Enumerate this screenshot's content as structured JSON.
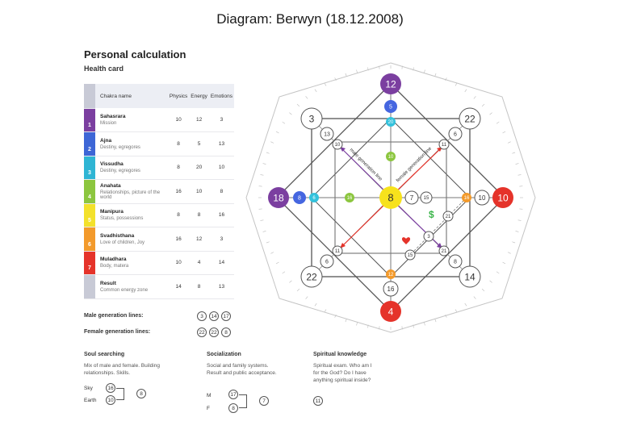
{
  "title": "Diagram: Berwyn (18.12.2008)",
  "heading": "Personal calculation",
  "subheading": "Health card",
  "table": {
    "headers": [
      "Chakra name",
      "Physics",
      "Energy",
      "Emotions"
    ],
    "rows": [
      {
        "num": "1",
        "name": "Sahasrara",
        "desc": "Mission",
        "physics": "10",
        "energy": "12",
        "emotions": "3",
        "color": "#7b3fa0"
      },
      {
        "num": "2",
        "name": "Ajna",
        "desc": "Destiny, egregores",
        "physics": "8",
        "energy": "5",
        "emotions": "13",
        "color": "#3d66d6"
      },
      {
        "num": "3",
        "name": "Vissudha",
        "desc": "Destiny, egregores",
        "physics": "8",
        "energy": "20",
        "emotions": "10",
        "color": "#2fb5d4"
      },
      {
        "num": "4",
        "name": "Anahata",
        "desc": "Relationships, picture of the world",
        "physics": "16",
        "energy": "10",
        "emotions": "8",
        "color": "#8cc63f"
      },
      {
        "num": "5",
        "name": "Manipura",
        "desc": "Status, possessions",
        "physics": "8",
        "energy": "8",
        "emotions": "16",
        "color": "#f3e12b"
      },
      {
        "num": "6",
        "name": "Svadhisthana",
        "desc": "Love of children, Joy",
        "physics": "16",
        "energy": "12",
        "emotions": "3",
        "color": "#f39a2b"
      },
      {
        "num": "7",
        "name": "Muladhara",
        "desc": "Body, matera",
        "physics": "10",
        "energy": "4",
        "emotions": "14",
        "color": "#e5332a"
      },
      {
        "num": "",
        "name": "Result",
        "desc": "Common energy zone",
        "physics": "14",
        "energy": "8",
        "emotions": "13",
        "color": "#c8cad6"
      }
    ]
  },
  "generation": {
    "male_label": "Male generation lines:",
    "male_values": [
      "3",
      "14",
      "17"
    ],
    "female_label": "Female generation lines:",
    "female_values": [
      "22",
      "22",
      "8"
    ]
  },
  "sections": {
    "soul": {
      "title": "Soul searching",
      "text": "Mix of male and female. Building relationships. Skills.",
      "sky_label": "Sky",
      "sky": "16",
      "earth_label": "Earth",
      "earth": "10",
      "result": "8"
    },
    "social": {
      "title": "Socialization",
      "text": "Social and family systems. Result and public acceptance.",
      "m_label": "M",
      "m": "17",
      "f_label": "F",
      "f": "8",
      "result": "7"
    },
    "spiritual": {
      "title": "Spiritual knowledge",
      "text": "Spiritual exam. Who am I for the God? Do I have anything spiritual inside?",
      "result": "11"
    }
  },
  "diagram": {
    "top": "12",
    "bottom": "4",
    "left": "18",
    "right": "10",
    "center": "8",
    "corner_tl": "3",
    "corner_tr": "22",
    "corner_bl": "22",
    "corner_br": "14",
    "top_2": "5",
    "top_3": "20",
    "top_4": "10",
    "left_2": "8",
    "left_3": "6",
    "left_4": "16",
    "right_2": "10",
    "right_3": "16",
    "bottom_2": "16",
    "bottom_3": "12",
    "center_right": "7",
    "center_right_2": "15",
    "tl_inner": "13",
    "tl_inner2": "10",
    "tr_inner": "6",
    "tr_inner2": "11",
    "bl_inner": "6",
    "bl_inner2": "11",
    "br_inner": "8",
    "br_inner2": "21",
    "money_line": "21",
    "money_line_2": "3",
    "money_line_3": "15",
    "male_line_label": "male generation line",
    "female_line_label": "female generation line",
    "colors": {
      "violet": "#7b3fa0",
      "blue": "#4566e0",
      "cyan": "#34c2dc",
      "green": "#8cc63f",
      "yellow": "#f7e21c",
      "orange": "#f39a2b",
      "red": "#e5332a",
      "money": "#3bb54a",
      "heart": "#e5332a"
    }
  }
}
